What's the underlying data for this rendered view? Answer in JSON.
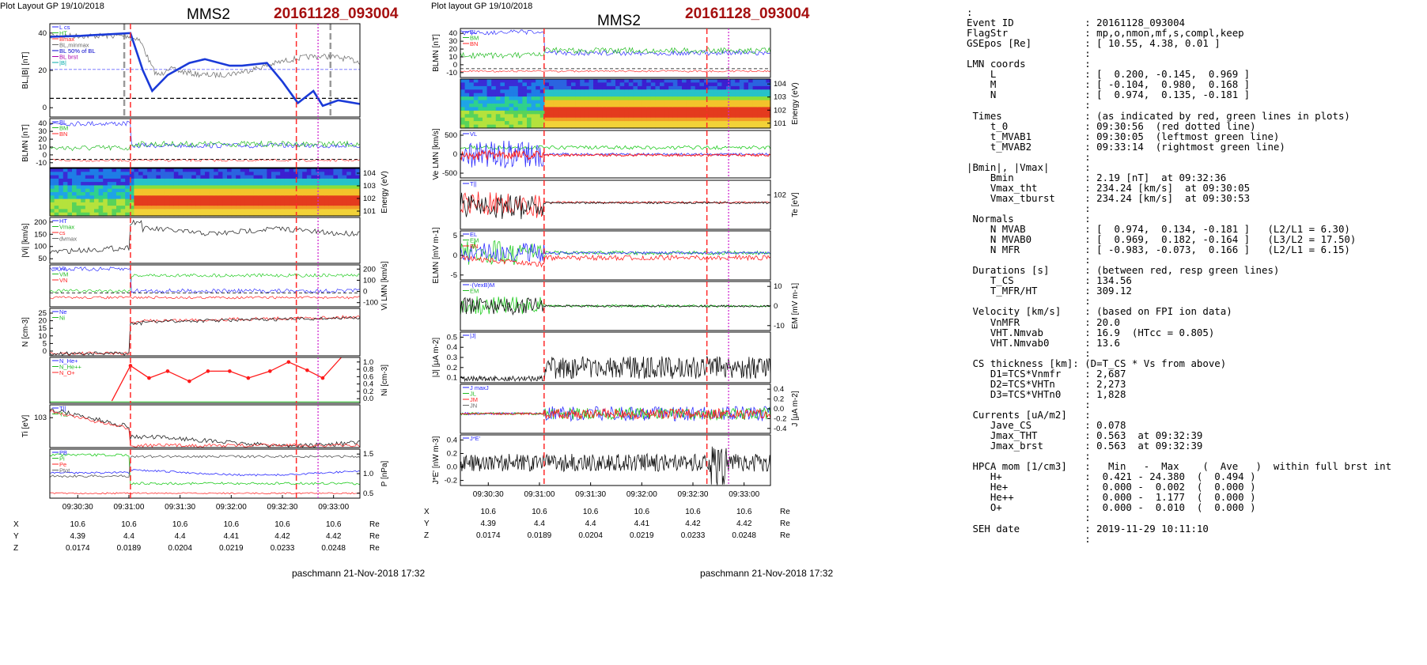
{
  "left_figure": {
    "header": "Plot Layout GP 19/10/2018",
    "spacecraft": "MMS2",
    "event": "20161128_093004",
    "footer": "paschmann 21-Nov-2018 17:32",
    "panels": [
      {
        "ylabel": "BL,|B| [nT]",
        "yticks": [
          "40",
          "20",
          "0"
        ],
        "legend": [
          "L cs",
          "HT",
          "Bmax",
          "BL,minmax",
          "BL 50% of BL",
          "BL brst",
          "|B|"
        ],
        "right_label": ""
      },
      {
        "ylabel": "BLMN [nT]",
        "yticks": [
          "40",
          "30",
          "20",
          "10",
          "0",
          "-10"
        ],
        "legend": [
          "BL",
          "BM",
          "BN"
        ],
        "right_label": ""
      },
      {
        "ylabel": "",
        "yticks": [
          "104",
          "103",
          "102",
          "101"
        ],
        "legend": [],
        "right_label": "Energy (eV)"
      },
      {
        "ylabel": "|Vi| [km/s]",
        "yticks": [
          "200",
          "150",
          "100",
          "50"
        ],
        "legend": [
          "HT",
          "Vmax",
          "cs",
          "dvmax"
        ],
        "right_label": ""
      },
      {
        "ylabel": "",
        "yticks": [
          "200",
          "100",
          "0",
          "-100"
        ],
        "legend": [
          "VL",
          "VM",
          "VN"
        ],
        "right_label": "Vi LMN [km/s]"
      },
      {
        "ylabel": "N [cm-3]",
        "yticks": [
          "25",
          "20",
          "15",
          "10",
          "5",
          "0"
        ],
        "legend": [
          "Ne",
          "Ni"
        ],
        "right_label": ""
      },
      {
        "ylabel": "",
        "yticks": [
          "1.0",
          "0.8",
          "0.6",
          "0.4",
          "0.2",
          "0.0"
        ],
        "legend": [
          "N_He+",
          "N_He++",
          "N_O+"
        ],
        "right_label": "Ni [cm-3]"
      },
      {
        "ylabel": "Ti [eV]",
        "yticks": [
          "103"
        ],
        "legend": [
          "T||",
          "T⊥"
        ],
        "right_label": ""
      },
      {
        "ylabel": "",
        "yticks": [
          "1.5",
          "1.0",
          "0.5"
        ],
        "legend": [
          "PB",
          "Pi",
          "Pe",
          "Ptot"
        ],
        "right_label": "P [nPa]"
      }
    ],
    "xticks": [
      "09:30:30",
      "09:31:00",
      "09:31:30",
      "09:32:00",
      "09:32:30",
      "09:33:00"
    ],
    "orbit": {
      "X": [
        "10.6",
        "10.6",
        "10.6",
        "10.6",
        "10.6",
        "10.6"
      ],
      "Y": [
        "4.39",
        "4.4",
        "4.4",
        "4.41",
        "4.42",
        "4.42"
      ],
      "Z": [
        "0.0174",
        "0.0189",
        "0.0204",
        "0.0219",
        "0.0233",
        "0.0248"
      ],
      "unit": "Re"
    }
  },
  "right_figure": {
    "header": "Plot layout GP 19/10/2018",
    "spacecraft": "MMS2",
    "event": "20161128_093004",
    "footer": "paschmann 21-Nov-2018 17:32",
    "panels": [
      {
        "ylabel": "BLMN [nT]",
        "yticks": [
          "40",
          "30",
          "20",
          "10",
          "0",
          "-10"
        ],
        "legend": [
          "BL",
          "BM",
          "BN"
        ],
        "right_label": ""
      },
      {
        "ylabel": "",
        "yticks": [
          "104",
          "103",
          "102",
          "101"
        ],
        "legend": [],
        "right_label": "Energy (eV)"
      },
      {
        "ylabel": "Ve LMN [km/s]",
        "yticks": [
          "500",
          "0",
          "-500"
        ],
        "legend": [
          "VL"
        ],
        "right_label": ""
      },
      {
        "ylabel": "",
        "yticks": [
          "102"
        ],
        "legend": [
          "T||"
        ],
        "right_label": "Te [eV]"
      },
      {
        "ylabel": "ELMN [mV m-1]",
        "yticks": [
          "5",
          "0",
          "-5"
        ],
        "legend": [
          "EL",
          "EM",
          "EN"
        ],
        "right_label": ""
      },
      {
        "ylabel": "",
        "yticks": [
          "10",
          "0",
          "-10"
        ],
        "legend": [
          "-(VexB)M",
          "EM"
        ],
        "right_label": "EM [mV m-1]"
      },
      {
        "ylabel": "|J| [μA m-2]",
        "yticks": [
          "0.5",
          "0.4",
          "0.3",
          "0.2",
          "0.1"
        ],
        "legend": [
          "|J|"
        ],
        "right_label": ""
      },
      {
        "ylabel": "",
        "yticks": [
          "0.4",
          "0.2",
          "0.0",
          "-0.2",
          "-0.4"
        ],
        "legend": [
          "J maxJ",
          "JL",
          "JM",
          "JN"
        ],
        "right_label": "J [μA m-2]"
      },
      {
        "ylabel": "J*E' [nW m-3]",
        "yticks": [
          "0.4",
          "0.2",
          "0.0",
          "-0.2"
        ],
        "legend": [
          "J*E'"
        ],
        "right_label": ""
      }
    ],
    "xticks": [
      "09:30:30",
      "09:31:00",
      "09:31:30",
      "09:32:00",
      "09:32:30",
      "09:33:00"
    ],
    "orbit": {
      "X": [
        "10.6",
        "10.6",
        "10.6",
        "10.6",
        "10.6",
        "10.6"
      ],
      "Y": [
        "4.39",
        "4.4",
        "4.4",
        "4.41",
        "4.42",
        "4.42"
      ],
      "Z": [
        "0.0174",
        "0.0189",
        "0.0204",
        "0.0219",
        "0.0233",
        "0.0248"
      ],
      "unit": "Re"
    }
  },
  "summary": {
    "lines": [
      ":",
      "Event ID            : 20161128_093004",
      "FlagStr             : mp,o,nmon,mf,s,compl,keep",
      "GSEpos [Re]         : [ 10.55, 4.38, 0.01 ]",
      "                    :",
      "LMN coords          :",
      "    L               : [  0.200, -0.145,  0.969 ]",
      "    M               : [ -0.104,  0.980,  0.168 ]",
      "    N               : [  0.974,  0.135, -0.181 ]",
      "                    :",
      " Times              : (as indicated by red, green lines in plots)",
      "    t_0             : 09:30:56  (red dotted line)",
      "    t_MVAB1         : 09:30:05  (leftmost green line)",
      "    t_MVAB2         : 09:33:14  (rightmost green line)",
      "                    :",
      "|Bmin|, |Vmax|      :",
      "    Bmin            : 2.19 [nT]  at 09:32:36",
      "    Vmax_tht        : 234.24 [km/s]  at 09:30:05",
      "    Vmax_tburst     : 234.24 [km/s]  at 09:30:53",
      "                    :",
      " Normals            :",
      "    N MVAB          : [  0.974,  0.134, -0.181 ]   (L2/L1 = 6.30)",
      "    N MVAB0         : [  0.969,  0.182, -0.164 ]   (L3/L2 = 17.50)",
      "    N MFR           : [ -0.983, -0.073,  0.166 ]   (L2/L1 = 6.15)",
      "                    :",
      " Durations [s]      : (between red, resp green lines)",
      "    T_CS            : 134.56",
      "    T_MFR/HT        : 309.12",
      "                    :",
      " Velocity [km/s]    : (based on FPI ion data)",
      "    VnMFR           : 20.0",
      "    VHT.Nmvab       : 16.9  (HTcc = 0.805)",
      "    VHT.Nmvab0      : 13.6",
      "                    :",
      " CS thickness [km]: (D=T_CS * Vs from above)",
      "    D1=TCS*Vnmfr    : 2,687",
      "    D2=TCS*VHTn     : 2,273",
      "    D3=TCS*VHTn0    : 1,828",
      "                    :",
      " Currents [uA/m2]   :",
      "    Jave_CS         : 0.078",
      "    Jmax_THT        : 0.563  at 09:32:39",
      "    Jmax_brst       : 0.563  at 09:32:39",
      "                    :",
      " HPCA mom [1/cm3]   :   Min   -  Max    (  Ave   )  within full brst int",
      "    H+              :  0.421 - 24.380  (  0.494 )",
      "    He+             :  0.000 -  0.002  (  0.000 )",
      "    He++            :  0.000 -  1.177  (  0.000 )",
      "    O+              :  0.000 -  0.010  (  0.000 )",
      "                    :",
      " SEH date           : 2019-11-29 10:11:10",
      "                    :"
    ]
  },
  "chart_data": [
    {
      "type": "line",
      "title": "MMS2",
      "event": "20161128_093004",
      "x": [
        "09:30:30",
        "09:31:00",
        "09:31:30",
        "09:32:00",
        "09:32:30",
        "09:33:00"
      ],
      "ylabel": "BL,|B| [nT]",
      "ylim": [
        -10,
        48
      ],
      "series": [
        {
          "name": "BL brst",
          "values": [
            42,
            8,
            22,
            20,
            0,
            -1
          ]
        },
        {
          "name": "|B|",
          "values": [
            44,
            12,
            24,
            23,
            12,
            15
          ]
        }
      ],
      "lines": {
        "red_dashed": [
          "09:30:57",
          "09:32:36"
        ],
        "magenta_dotted": "09:32:46",
        "gray_dashed": [
          "09:30:51",
          "09:32:56"
        ]
      }
    },
    {
      "type": "line",
      "title": "MMS2",
      "event": "20161128_093004",
      "x": [
        "09:30:30",
        "09:31:00",
        "09:31:30",
        "09:32:00",
        "09:32:30",
        "09:33:00"
      ],
      "ylabel": "|J| [μA m-2]",
      "ylim": [
        0,
        0.55
      ],
      "series": [
        {
          "name": "|J|",
          "values": [
            0.05,
            0.2,
            0.15,
            0.15,
            0.2,
            0.15
          ]
        }
      ]
    }
  ]
}
